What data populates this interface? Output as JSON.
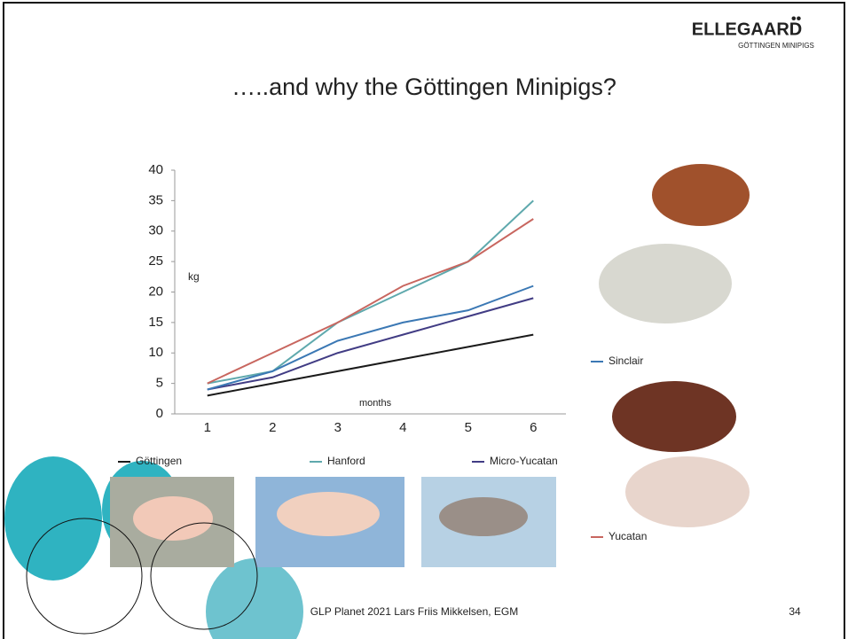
{
  "slide": {
    "title": "…..and why the Göttingen Minipigs?",
    "logo": "ELLEGAARD",
    "logo_sub": "GÖTTINGEN MINIPIGS",
    "footer": "GLP Planet 2021 Lars Friis Mikkelsen, EGM",
    "page": "34"
  },
  "chart_data": {
    "type": "line",
    "ylabel": "kg",
    "xlabel": "months",
    "categories": [
      "1",
      "2",
      "3",
      "4",
      "5",
      "6"
    ],
    "series": [
      {
        "name": "Göttingen",
        "color": "#1a1a1a",
        "values": [
          3,
          5,
          7,
          9,
          11,
          13
        ]
      },
      {
        "name": "Hanford",
        "color": "#5fa9ad",
        "values": [
          5,
          7,
          15,
          20,
          25,
          35
        ]
      },
      {
        "name": "Micro-Yucatan",
        "color": "#413c84",
        "values": [
          4,
          6,
          10,
          13,
          16,
          19
        ]
      },
      {
        "name": "Sinclair",
        "color": "#3b78b4",
        "values": [
          4,
          7,
          12,
          15,
          17,
          21
        ]
      },
      {
        "name": "Yucatan",
        "color": "#c8665f",
        "values": [
          5,
          10,
          15,
          21,
          25,
          32
        ]
      }
    ],
    "ylim": [
      0,
      40
    ],
    "yticks": [
      0,
      5,
      10,
      15,
      20,
      25,
      30,
      35,
      40
    ]
  }
}
